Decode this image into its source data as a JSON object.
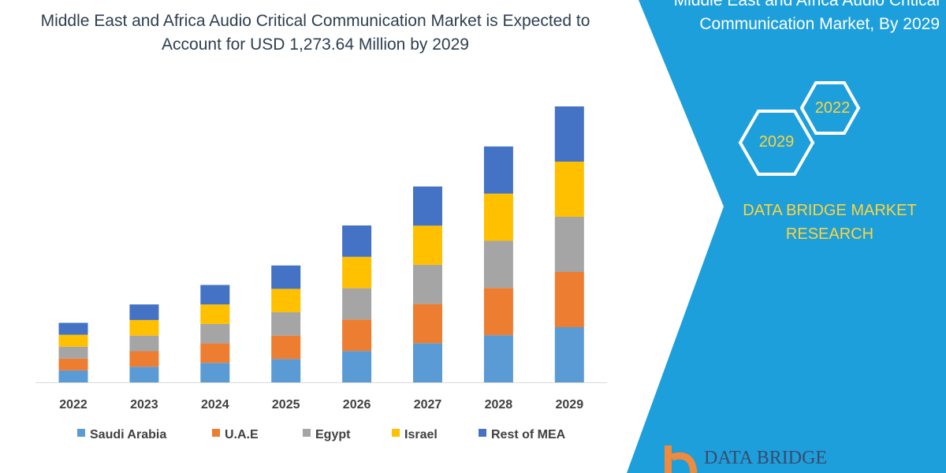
{
  "title": "Middle East and Africa Audio Critical Communication Market is Expected to Account for USD 1,273.64 Million by 2029",
  "title_lines": [
    "Middle East and Africa Audio Critical Communication Market is Expected to",
    "Account for USD 1,273.64 Million by 2029"
  ],
  "side_panel": {
    "title_lines": [
      "Middle East and Africa Audio Critical",
      "Communication Market, By 2029"
    ],
    "hex_years": [
      "2022",
      "2029"
    ],
    "brand_lines": [
      "DATA BRIDGE MARKET",
      "RESEARCH"
    ],
    "logo_text": "DATA BRIDGE",
    "panel_color": "#1d9fdc",
    "brand_color": "#ffd43b"
  },
  "chart_data": {
    "type": "bar",
    "stacked": true,
    "categories": [
      "2022",
      "2023",
      "2024",
      "2025",
      "2026",
      "2027",
      "2028",
      "2029"
    ],
    "series": [
      {
        "name": "Saudi Arabia",
        "color": "#5b9bd5",
        "values": [
          55,
          72,
          90,
          108,
          145,
          181,
          218,
          255
        ]
      },
      {
        "name": "U.A.E",
        "color": "#ed7d31",
        "values": [
          55,
          72,
          90,
          108,
          145,
          181,
          218,
          255
        ]
      },
      {
        "name": "Egypt",
        "color": "#a5a5a5",
        "values": [
          55,
          72,
          90,
          108,
          145,
          181,
          218,
          255
        ]
      },
      {
        "name": "Israel",
        "color": "#ffc000",
        "values": [
          55,
          72,
          90,
          108,
          145,
          181,
          218,
          255
        ]
      },
      {
        "name": "Rest of MEA",
        "color": "#4472c4",
        "values": [
          55,
          72,
          90,
          108,
          145,
          181,
          218,
          255
        ]
      }
    ],
    "xlabel": "",
    "ylabel": "",
    "y_axis_shown": false,
    "grid": false,
    "legend": "bottom"
  }
}
